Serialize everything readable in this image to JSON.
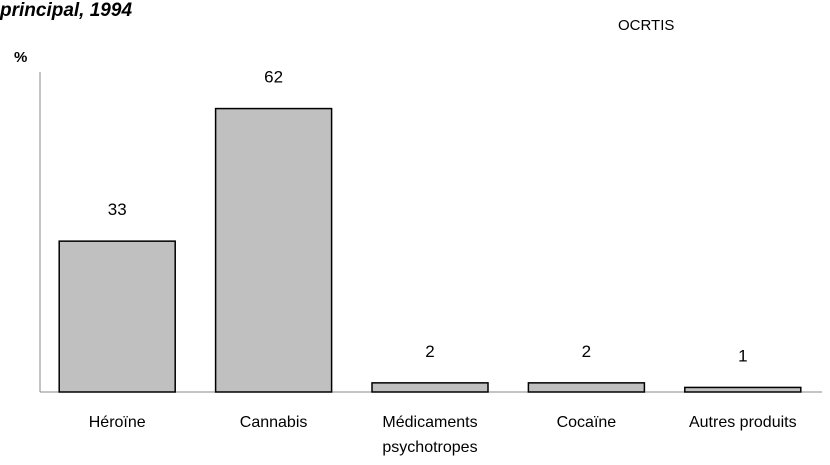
{
  "header": {
    "title": "principal, 1994",
    "source": "OCRTIS"
  },
  "chart_data": {
    "type": "bar",
    "title": "principal, 1994",
    "ylabel": "%",
    "xlabel": "",
    "categories": [
      [
        "Héroïne"
      ],
      [
        "Cannabis"
      ],
      [
        "Médicaments",
        "psychotropes"
      ],
      [
        "Cocaïne"
      ],
      [
        "Autres produits"
      ]
    ],
    "values": [
      33,
      62,
      2,
      2,
      1
    ],
    "data_labels": [
      "33",
      "62",
      "2",
      "2",
      "1"
    ],
    "ylim": [
      0,
      70
    ],
    "grid": false,
    "bar_color": "#c0c0c0",
    "bar_edge_color": "#000000"
  }
}
